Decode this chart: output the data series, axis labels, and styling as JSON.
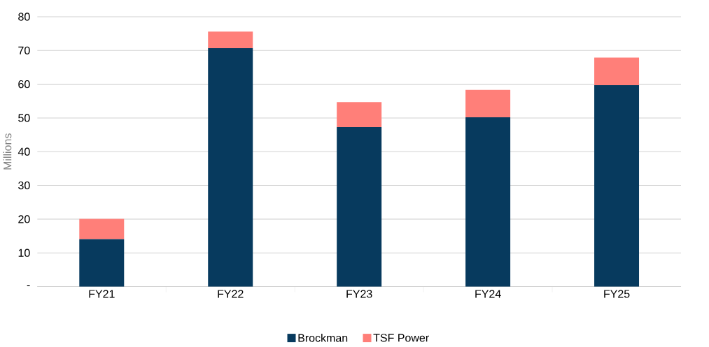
{
  "chart_data": {
    "type": "bar",
    "stacked": true,
    "ylabel": "Millions",
    "categories": [
      "FY21",
      "FY22",
      "FY23",
      "FY24",
      "FY25"
    ],
    "series": [
      {
        "name": "Brockman",
        "color": "#073a5e",
        "values": [
          14.1,
          70.7,
          47.3,
          50.2,
          59.7
        ]
      },
      {
        "name": "TSF Power",
        "color": "#ff7f79",
        "values": [
          6.0,
          4.9,
          7.4,
          8.1,
          8.2
        ]
      }
    ],
    "ylim": [
      0,
      80
    ],
    "yticks": [
      {
        "value": 0,
        "label": "-"
      },
      10,
      20,
      30,
      40,
      50,
      60,
      70,
      80
    ],
    "grid": "y",
    "legend": "bottom"
  }
}
